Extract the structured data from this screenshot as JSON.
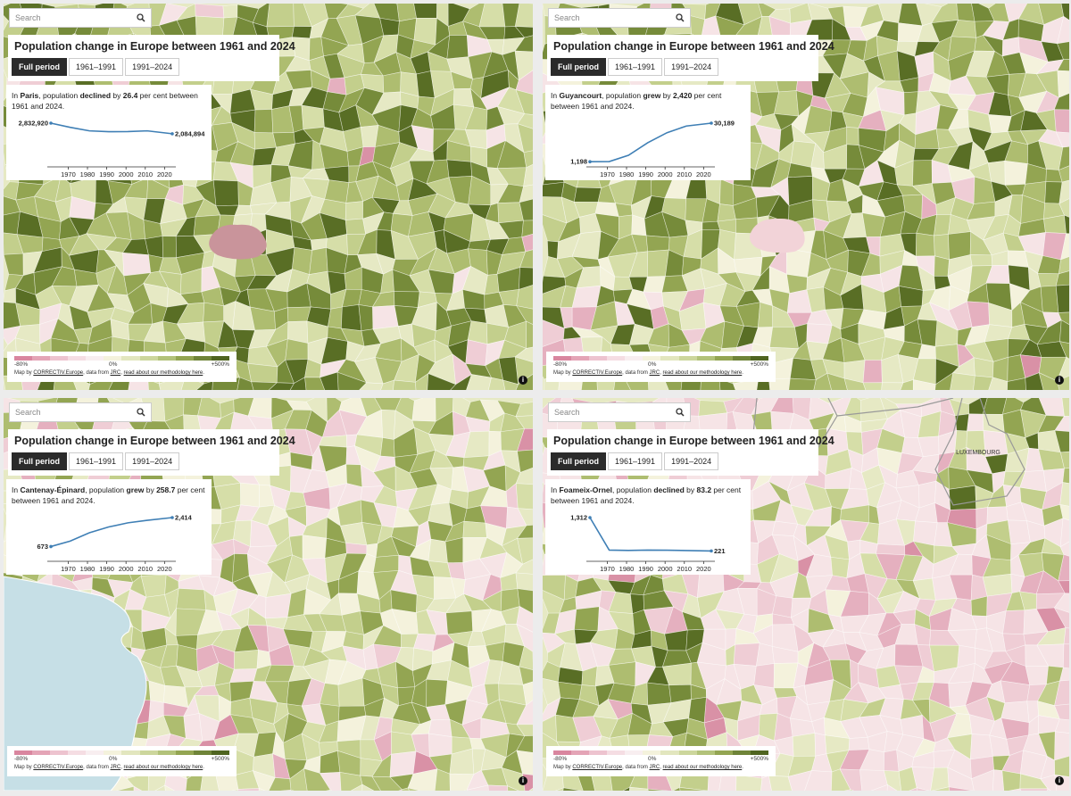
{
  "panels": [
    {
      "search": "Search",
      "title": "Population change in Europe between 1961 and 2024",
      "buttons": [
        "Full period",
        "1961–1991",
        "1991–2024"
      ],
      "text_parts": [
        "In ",
        "Paris",
        ", population ",
        "declined",
        " by ",
        "26.4",
        " per cent between 1961 and 2024."
      ],
      "chart": {
        "type": "line",
        "x": [
          1961,
          1971,
          1981,
          1991,
          2001,
          2011,
          2024
        ],
        "values": [
          2832920,
          2540000,
          2290000,
          2230000,
          2240000,
          2290000,
          2084894
        ],
        "value_labels": [
          "2,832,920",
          null,
          null,
          null,
          null,
          null,
          "2,084,894"
        ],
        "xlim": [
          1961,
          2024
        ],
        "xticks": [
          1970,
          1980,
          1990,
          2000,
          2010,
          2020
        ],
        "color": "#3f7fb5"
      },
      "legend": [
        "-80%",
        "0%",
        "+500%"
      ],
      "credit": [
        "Map by ",
        "CORRECTIV.Europe",
        ", data from ",
        "JRC",
        ", ",
        "read about our methodology here",
        "."
      ]
    },
    {
      "search": "Search",
      "title": "Population change in Europe between 1961 and 2024",
      "buttons": [
        "Full period",
        "1961–1991",
        "1991–2024"
      ],
      "text_parts": [
        "In ",
        "Guyancourt",
        ", population ",
        "grew",
        " by ",
        "2,420",
        " per cent between 1961 and 2024."
      ],
      "chart": {
        "type": "line",
        "x": [
          1961,
          1971,
          1981,
          1991,
          2001,
          2011,
          2024
        ],
        "values": [
          1198,
          1300,
          6000,
          15500,
          23000,
          28000,
          30189
        ],
        "value_labels": [
          "1,198",
          null,
          null,
          null,
          null,
          null,
          "30,189"
        ],
        "xlim": [
          1961,
          2024
        ],
        "xticks": [
          1970,
          1980,
          1990,
          2000,
          2010,
          2020
        ],
        "color": "#3f7fb5"
      },
      "legend": [
        "-80%",
        "0%",
        "+500%"
      ],
      "credit": [
        "Map by ",
        "CORRECTIV.Europe",
        ", data from ",
        "JRC",
        ", ",
        "read about our methodology here",
        "."
      ]
    },
    {
      "search": "Search",
      "title": "Population change in Europe between 1961 and 2024",
      "buttons": [
        "Full period",
        "1961–1991",
        "1991–2024"
      ],
      "text_parts": [
        "In ",
        "Cantenay-Épinard",
        ", population ",
        "grew",
        " by ",
        "258.7",
        " per cent between 1961 and 2024."
      ],
      "chart": {
        "type": "line",
        "x": [
          1961,
          1971,
          1981,
          1991,
          2001,
          2011,
          2024
        ],
        "values": [
          673,
          1000,
          1500,
          1850,
          2100,
          2250,
          2414
        ],
        "value_labels": [
          "673",
          null,
          null,
          null,
          null,
          null,
          "2,414"
        ],
        "xlim": [
          1961,
          2024
        ],
        "xticks": [
          1970,
          1980,
          1990,
          2000,
          2010,
          2020
        ],
        "color": "#3f7fb5"
      },
      "legend": [
        "-80%",
        "0%",
        "+500%"
      ],
      "credit": [
        "Map by ",
        "CORRECTIV.Europe",
        ", data from ",
        "JRC",
        ", ",
        "read about our methodology here",
        "."
      ]
    },
    {
      "search": "Search",
      "title": "Population change in Europe between 1961 and 2024",
      "buttons": [
        "Full period",
        "1961–1991",
        "1991–2024"
      ],
      "text_parts": [
        "In ",
        "Foameix-Ornel",
        ", population ",
        "declined",
        " by ",
        "83.2",
        " per cent between 1961 and 2024."
      ],
      "chart": {
        "type": "line",
        "x": [
          1961,
          1971,
          1981,
          1991,
          2001,
          2011,
          2024
        ],
        "values": [
          1312,
          250,
          240,
          250,
          245,
          235,
          221
        ],
        "value_labels": [
          "1,312",
          null,
          null,
          null,
          null,
          null,
          "221"
        ],
        "xlim": [
          1961,
          2024
        ],
        "xticks": [
          1970,
          1980,
          1990,
          2000,
          2010,
          2020
        ],
        "color": "#3f7fb5"
      },
      "legend": [
        "-80%",
        "0%",
        "+500%"
      ],
      "credit": [
        "Map by ",
        "CORRECTIV.Europe",
        ", data from ",
        "JRC",
        ", ",
        "read about our methodology here",
        "."
      ],
      "map_label": "LUXEMBOURG"
    }
  ]
}
